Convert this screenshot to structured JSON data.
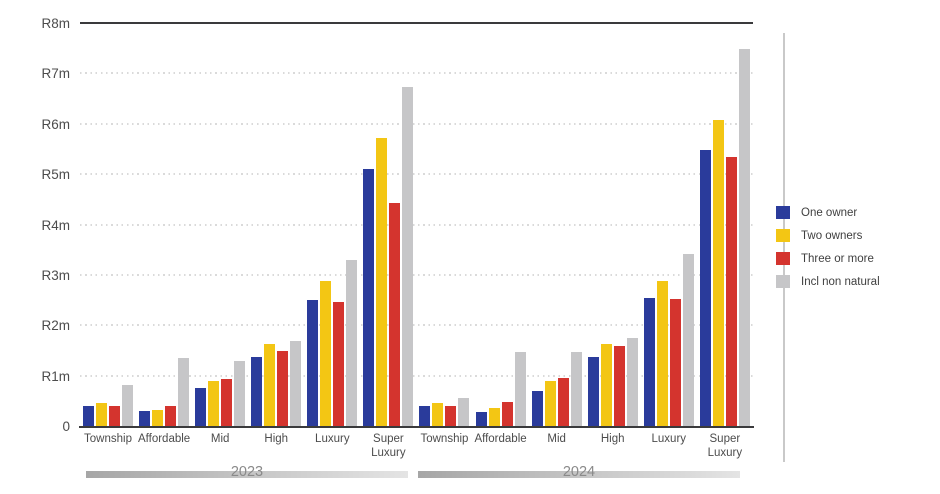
{
  "legend": {
    "position": "right",
    "items": [
      {
        "label": "One owner",
        "color": "#2a3b9b"
      },
      {
        "label": "Two owners",
        "color": "#f3c614"
      },
      {
        "label": "Three or more",
        "color": "#d4342e"
      },
      {
        "label": "Incl non natural",
        "color": "#c6c6c8"
      }
    ]
  },
  "chart_data": {
    "type": "bar",
    "title": "",
    "xlabel": "",
    "ylabel": "",
    "value_unit": "R millions",
    "ylim": [
      0,
      8
    ],
    "grid": "horizontal-dotted",
    "legend_position": "right",
    "y_ticks": [
      {
        "label": "R8m",
        "value": 8,
        "style": "solid"
      },
      {
        "label": "R7m",
        "value": 7,
        "style": "dotted"
      },
      {
        "label": "R6m",
        "value": 6,
        "style": "dotted"
      },
      {
        "label": "R5m",
        "value": 5,
        "style": "dotted"
      },
      {
        "label": "R4m",
        "value": 4,
        "style": "dotted"
      },
      {
        "label": "R3m",
        "value": 3,
        "style": "dotted"
      },
      {
        "label": "R2m",
        "value": 2,
        "style": "dotted"
      },
      {
        "label": "R1m",
        "value": 1,
        "style": "dotted"
      },
      {
        "label": "0",
        "value": 0,
        "style": "axis"
      }
    ],
    "categories": [
      "Township",
      "Affordable",
      "Mid",
      "High",
      "Luxury",
      "Super Luxury"
    ],
    "series_names": [
      "One owner",
      "Two owners",
      "Three or more",
      "Incl non natural"
    ],
    "years": [
      {
        "label": "2023",
        "series": [
          {
            "name": "One owner",
            "values": [
              0.39,
              0.3,
              0.76,
              1.38,
              2.51,
              5.11
            ]
          },
          {
            "name": "Two owners",
            "values": [
              0.46,
              0.32,
              0.89,
              1.62,
              2.87,
              5.71
            ]
          },
          {
            "name": "Three or more",
            "values": [
              0.4,
              0.39,
              0.93,
              1.49,
              2.47,
              4.43
            ]
          },
          {
            "name": "Incl non natural",
            "values": [
              0.82,
              1.35,
              1.3,
              1.69,
              3.3,
              6.74
            ]
          }
        ]
      },
      {
        "label": "2024",
        "series": [
          {
            "name": "One owner",
            "values": [
              0.39,
              0.27,
              0.7,
              1.38,
              2.54,
              5.47
            ]
          },
          {
            "name": "Two owners",
            "values": [
              0.46,
              0.35,
              0.9,
              1.62,
              2.87,
              6.07
            ]
          },
          {
            "name": "Three or more",
            "values": [
              0.4,
              0.48,
              0.95,
              1.58,
              2.52,
              5.34
            ]
          },
          {
            "name": "Incl non natural",
            "values": [
              0.56,
              1.47,
              1.47,
              1.74,
              3.42,
              7.48
            ]
          }
        ]
      }
    ]
  }
}
